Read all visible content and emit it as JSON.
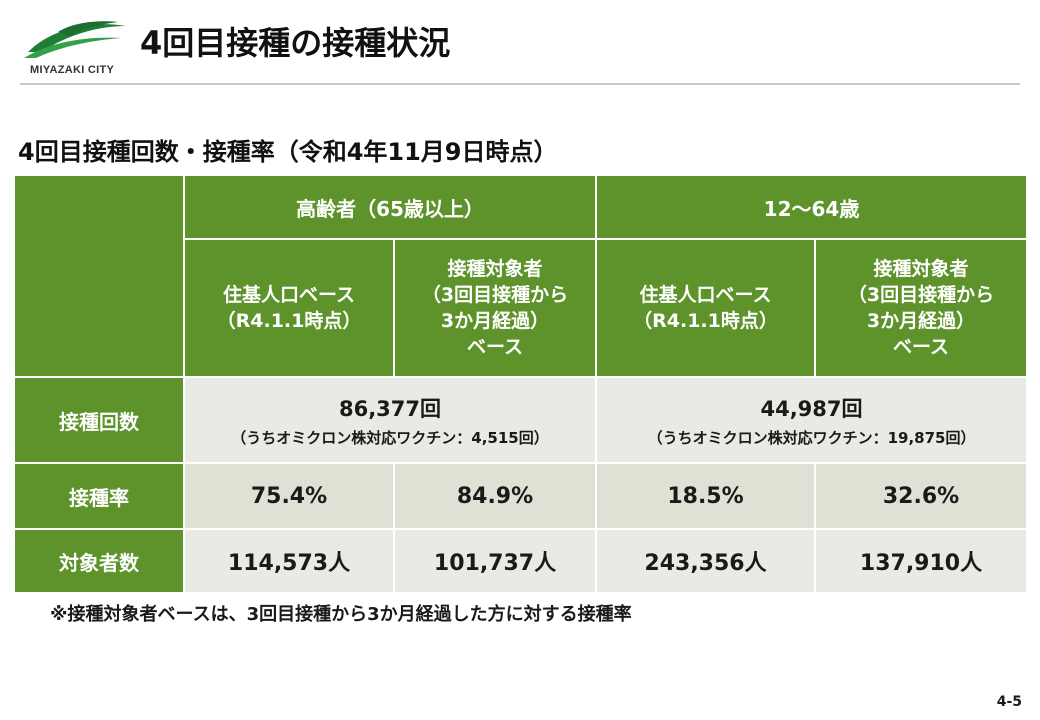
{
  "header": {
    "logo_text": "MIYAZAKI CITY",
    "title": "4回目接種の接種状況"
  },
  "section_title": "4回目接種回数・接種率（令和4年11月9日時点）",
  "table": {
    "groups": [
      {
        "label": "高齢者（65歳以上）",
        "sub": [
          [
            "住基人口ベース",
            "（R4.1.1時点）"
          ],
          [
            "接種対象者",
            "（3回目接種から",
            "3か月経過）",
            "ベース"
          ]
        ]
      },
      {
        "label": "12～64歳",
        "sub": [
          [
            "住基人口ベース",
            "（R4.1.1時点）"
          ],
          [
            "接種対象者",
            "（3回目接種から",
            "3か月経過）",
            "ベース"
          ]
        ]
      }
    ],
    "rows": {
      "count": {
        "label": "接種回数",
        "values": [
          {
            "main": "86,377回",
            "note": "（うちオミクロン株対応ワクチン：4,515回）"
          },
          {
            "main": "44,987回",
            "note": "（うちオミクロン株対応ワクチン：19,875回）"
          }
        ]
      },
      "rate": {
        "label": "接種率",
        "values": [
          "75.4%",
          "84.9%",
          "18.5%",
          "32.6%"
        ]
      },
      "target": {
        "label": "対象者数",
        "values": [
          "114,573人",
          "101,737人",
          "243,356人",
          "137,910人"
        ]
      }
    }
  },
  "footnote": "※接種対象者ベースは、3回目接種から3か月経過した方に対する接種率",
  "page_number": "4-5",
  "colors": {
    "header_green": "#5e932c",
    "cell_light": "#e8eae4",
    "cell_mid": "#dde2d5",
    "logo_green": "#2e8b3a"
  }
}
